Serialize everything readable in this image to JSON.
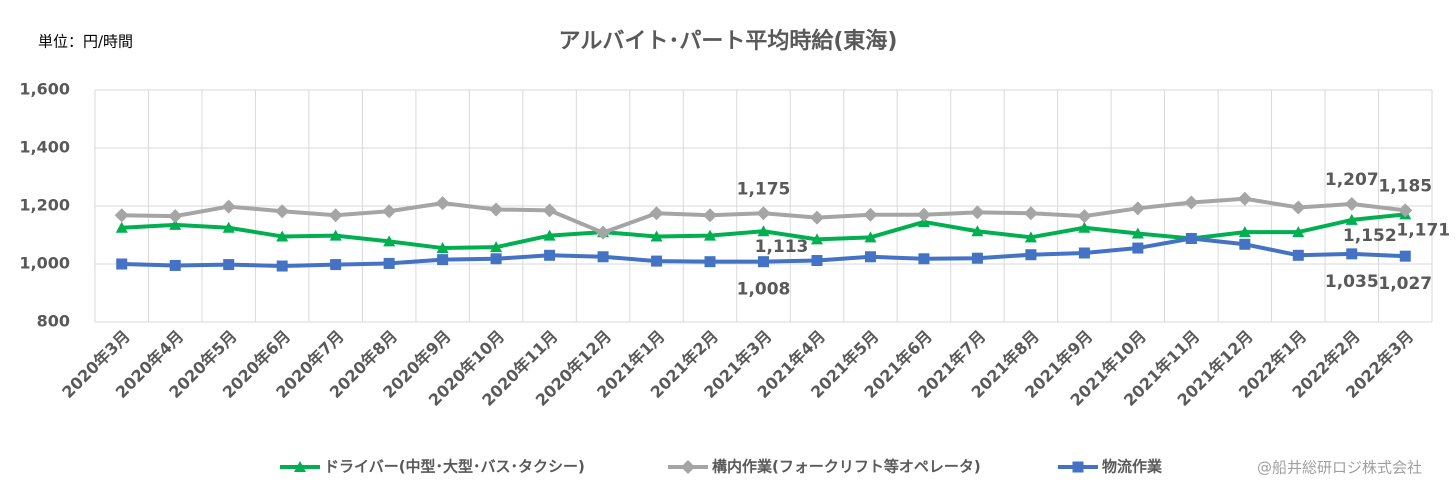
{
  "chart_data": {
    "type": "line",
    "title": "アルバイト･パート平均時給(東海)",
    "y_axis_label": "単位：円/時間",
    "credit": "@船井総研ロジ株式会社",
    "categories": [
      "2020年3月",
      "2020年4月",
      "2020年5月",
      "2020年6月",
      "2020年7月",
      "2020年8月",
      "2020年9月",
      "2020年10月",
      "2020年11月",
      "2020年12月",
      "2021年1月",
      "2021年2月",
      "2021年3月",
      "2021年4月",
      "2021年5月",
      "2021年6月",
      "2021年7月",
      "2021年8月",
      "2021年9月",
      "2021年10月",
      "2021年11月",
      "2021年12月",
      "2022年1月",
      "2022年2月",
      "2022年3月"
    ],
    "series": [
      {
        "name": "ドライバー(中型･大型･バス･タクシー)",
        "color": "#00b050",
        "marker": "triangle",
        "values": [
          1125,
          1135,
          1125,
          1095,
          1098,
          1078,
          1055,
          1058,
          1098,
          1110,
          1095,
          1098,
          1113,
          1085,
          1092,
          1145,
          1113,
          1092,
          1125,
          1105,
          1088,
          1110,
          1110,
          1152,
          1171
        ],
        "value_labels": [
          null,
          null,
          null,
          null,
          null,
          null,
          null,
          null,
          null,
          null,
          null,
          null,
          "1,113",
          null,
          null,
          null,
          null,
          null,
          null,
          null,
          null,
          null,
          null,
          "1,152",
          "1,171"
        ]
      },
      {
        "name": "構内作業(フォークリフト等オペレータ)",
        "color": "#a5a5a5",
        "marker": "diamond",
        "values": [
          1168,
          1165,
          1198,
          1182,
          1168,
          1182,
          1210,
          1188,
          1185,
          1108,
          1175,
          1168,
          1175,
          1160,
          1170,
          1170,
          1178,
          1175,
          1165,
          1192,
          1212,
          1225,
          1195,
          1207,
          1185
        ],
        "value_labels": [
          null,
          null,
          null,
          null,
          null,
          null,
          null,
          null,
          null,
          null,
          null,
          null,
          "1,175",
          null,
          null,
          null,
          null,
          null,
          null,
          null,
          null,
          null,
          null,
          "1,207",
          "1,185"
        ]
      },
      {
        "name": "物流作業",
        "color": "#4472c4",
        "marker": "square",
        "values": [
          1000,
          995,
          998,
          993,
          998,
          1002,
          1015,
          1018,
          1030,
          1025,
          1010,
          1008,
          1008,
          1012,
          1025,
          1018,
          1020,
          1032,
          1038,
          1055,
          1088,
          1068,
          1030,
          1035,
          1027
        ],
        "value_labels": [
          null,
          null,
          null,
          null,
          null,
          null,
          null,
          null,
          null,
          null,
          null,
          null,
          "1,008",
          null,
          null,
          null,
          null,
          null,
          null,
          null,
          null,
          null,
          null,
          "1,035",
          "1,027"
        ]
      }
    ],
    "ylim": [
      800,
      1600
    ],
    "yticks": [
      800,
      {
        "value": 1000,
        "label": "1,000"
      },
      {
        "value": 1200,
        "label": "1,200"
      },
      {
        "value": 1400,
        "label": "1,400"
      },
      {
        "value": 1600,
        "label": "1,600"
      }
    ],
    "grid": true
  }
}
